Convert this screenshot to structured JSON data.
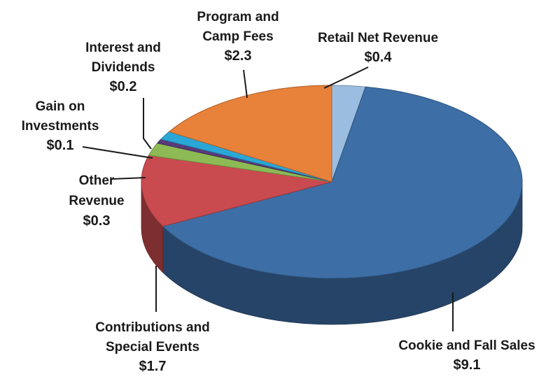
{
  "chart_data": {
    "type": "pie",
    "style": "3d",
    "title": "",
    "categories": [
      "Retail Net Revenue",
      "Cookie and Fall Sales",
      "Contributions and Special Events",
      "Other Revenue",
      "Gain on Investments",
      "Interest and Dividends",
      "Program and Camp Fees"
    ],
    "values": [
      0.4,
      9.1,
      1.7,
      0.3,
      0.1,
      0.2,
      2.3
    ],
    "value_labels": [
      "$0.4",
      "$9.1",
      "$1.7",
      "$0.3",
      "$0.1",
      "$0.2",
      "$2.3"
    ],
    "colors": [
      "#9bbde0",
      "#3d6ea6",
      "#c94a4f",
      "#8dba54",
      "#5a3a7a",
      "#2aa7d6",
      "#e8813a"
    ],
    "legend": "none",
    "labels": [
      {
        "name_lines": [
          "Retail Net Revenue"
        ],
        "value": "$0.4"
      },
      {
        "name_lines": [
          "Cookie and Fall Sales"
        ],
        "value": "$9.1"
      },
      {
        "name_lines": [
          "Contributions and",
          "Special Events"
        ],
        "value": "$1.7"
      },
      {
        "name_lines": [
          "Other",
          "Revenue"
        ],
        "value": "$0.3"
      },
      {
        "name_lines": [
          "Gain on",
          "Investments"
        ],
        "value": "$0.1"
      },
      {
        "name_lines": [
          "Interest and",
          "Dividends"
        ],
        "value": "$0.2"
      },
      {
        "name_lines": [
          "Program and",
          "Camp Fees"
        ],
        "value": "$2.3"
      }
    ]
  }
}
